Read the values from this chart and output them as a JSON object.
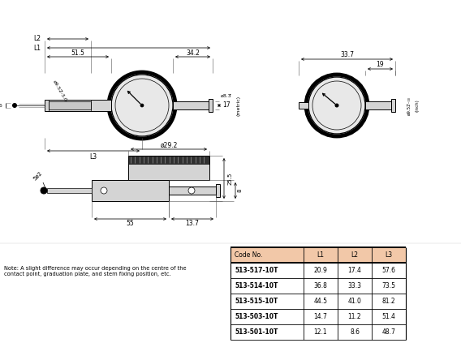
{
  "table_header_color": "#f2c8a8",
  "table_header": [
    "Code No.",
    "L1",
    "L2",
    "L3"
  ],
  "table_rows": [
    [
      "513-517-10T",
      "20.9",
      "17.4",
      "57.6"
    ],
    [
      "513-514-10T",
      "36.8",
      "33.3",
      "73.5"
    ],
    [
      "513-515-10T",
      "44.5",
      "41.0",
      "81.2"
    ],
    [
      "513-503-10T",
      "14.7",
      "11.2",
      "51.4"
    ],
    [
      "513-501-10T",
      "12.1",
      "8.6",
      "48.7"
    ]
  ],
  "note_text": "Note: A slight difference may occur depending on the centre of the\ncontact point, graduation plate, and stem fixing position, etc.",
  "bg_color": "#ffffff"
}
